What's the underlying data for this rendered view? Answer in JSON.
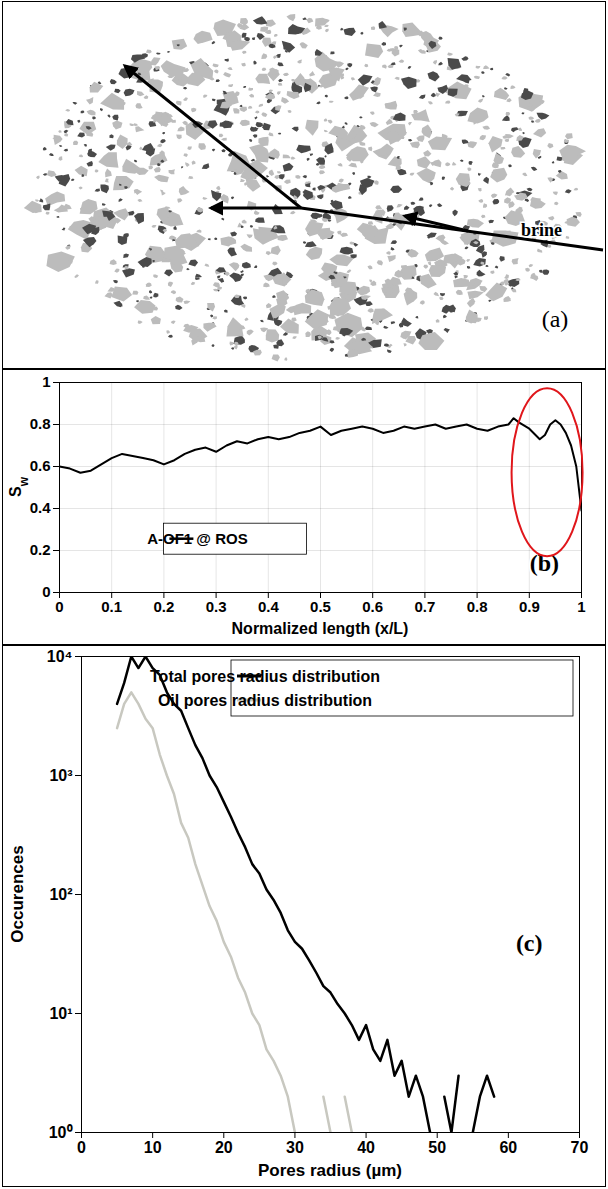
{
  "chart_data": [
    {
      "type": "image",
      "panel_label": "(a)",
      "annotations": [
        "brine"
      ]
    },
    {
      "type": "line",
      "panel_label": "(b)",
      "x_label": "Normalized length (x/L)",
      "y_label": "Sw",
      "x": [
        0,
        0.02,
        0.04,
        0.06,
        0.08,
        0.1,
        0.12,
        0.14,
        0.16,
        0.18,
        0.2,
        0.22,
        0.24,
        0.26,
        0.28,
        0.3,
        0.32,
        0.34,
        0.36,
        0.38,
        0.4,
        0.42,
        0.44,
        0.46,
        0.48,
        0.5,
        0.52,
        0.54,
        0.56,
        0.58,
        0.6,
        0.62,
        0.64,
        0.66,
        0.68,
        0.7,
        0.72,
        0.74,
        0.76,
        0.78,
        0.8,
        0.82,
        0.84,
        0.86,
        0.87,
        0.88,
        0.9,
        0.92,
        0.93,
        0.94,
        0.95,
        0.96,
        0.97,
        0.98,
        0.99,
        1
      ],
      "series": [
        {
          "name": "A-OF1 @ ROS",
          "color": "#000000",
          "values": [
            0.6,
            0.59,
            0.57,
            0.58,
            0.61,
            0.64,
            0.66,
            0.65,
            0.64,
            0.63,
            0.61,
            0.63,
            0.66,
            0.68,
            0.69,
            0.67,
            0.7,
            0.72,
            0.71,
            0.73,
            0.74,
            0.73,
            0.74,
            0.76,
            0.77,
            0.79,
            0.75,
            0.77,
            0.78,
            0.79,
            0.78,
            0.76,
            0.77,
            0.79,
            0.78,
            0.79,
            0.8,
            0.78,
            0.79,
            0.8,
            0.78,
            0.77,
            0.79,
            0.8,
            0.83,
            0.81,
            0.78,
            0.73,
            0.75,
            0.8,
            0.82,
            0.8,
            0.76,
            0.7,
            0.6,
            0.39
          ]
        }
      ],
      "xlim": [
        0,
        1
      ],
      "xticks": [
        0,
        0.1,
        0.2,
        0.3,
        0.4,
        0.5,
        0.6,
        0.7,
        0.8,
        0.9,
        1
      ],
      "ylim": [
        0,
        1
      ],
      "yticks": [
        0,
        0.2,
        0.4,
        0.6,
        0.8,
        1
      ],
      "grid": true,
      "legend": "lower left"
    },
    {
      "type": "line",
      "panel_label": "(c)",
      "x_label": "Pores radius (µm)",
      "y_label": "Occurences",
      "x": [
        5,
        6,
        7,
        8,
        9,
        10,
        11,
        12,
        13,
        14,
        15,
        16,
        17,
        18,
        19,
        20,
        21,
        22,
        23,
        24,
        25,
        26,
        27,
        28,
        29,
        30,
        31,
        32,
        33,
        34,
        35,
        36,
        37,
        38,
        39,
        40,
        41,
        42,
        43,
        44,
        45,
        46,
        47,
        48,
        49,
        50,
        51,
        52,
        53,
        54,
        55,
        56,
        57,
        58
      ],
      "series": [
        {
          "name": "Total pores radius distribution",
          "color": "#000000",
          "values": [
            4000,
            6000,
            10000,
            8000,
            10000,
            8000,
            7000,
            5000,
            4000,
            3500,
            2500,
            1800,
            1400,
            1000,
            800,
            600,
            450,
            330,
            250,
            180,
            150,
            110,
            90,
            70,
            50,
            40,
            35,
            28,
            22,
            17,
            15,
            12,
            10,
            8,
            6,
            8,
            5,
            4,
            6,
            3,
            4,
            2,
            3,
            2,
            1,
            null,
            2,
            1,
            3,
            null,
            1,
            2,
            3,
            2
          ]
        },
        {
          "name": "Oil pores radius distribution",
          "color": "#c8c8c0",
          "values": [
            2500,
            4000,
            5000,
            4000,
            3000,
            2500,
            1500,
            1000,
            700,
            400,
            300,
            180,
            120,
            80,
            60,
            40,
            30,
            20,
            15,
            10,
            8,
            5,
            4,
            3,
            2,
            1,
            null,
            null,
            null,
            2,
            1,
            null,
            2,
            1,
            null,
            null,
            null,
            null,
            null,
            null,
            null,
            null,
            null,
            null,
            null,
            null,
            null,
            null,
            null,
            null,
            null,
            null,
            null,
            null
          ]
        }
      ],
      "xlim": [
        0,
        70
      ],
      "xticks": [
        0,
        10,
        20,
        30,
        40,
        50,
        60,
        70
      ],
      "ylim": [
        1,
        10000
      ],
      "yticks": [
        {
          "value": 1,
          "label": "10⁰"
        },
        {
          "value": 10,
          "label": "10¹"
        },
        {
          "value": 100,
          "label": "10²"
        },
        {
          "value": 1000,
          "label": "10³"
        },
        {
          "value": 10000,
          "label": "10⁴"
        }
      ],
      "log": "y",
      "legend": "upper right"
    }
  ]
}
